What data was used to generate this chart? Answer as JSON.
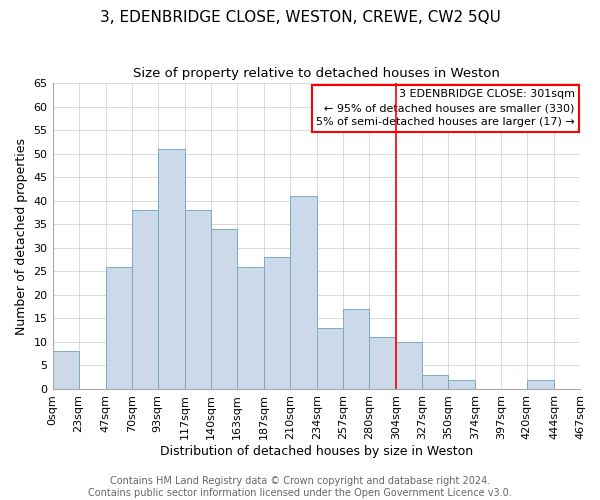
{
  "title": "3, EDENBRIDGE CLOSE, WESTON, CREWE, CW2 5QU",
  "subtitle": "Size of property relative to detached houses in Weston",
  "xlabel": "Distribution of detached houses by size in Weston",
  "ylabel": "Number of detached properties",
  "bin_edges": [
    0,
    23,
    47,
    70,
    93,
    117,
    140,
    163,
    187,
    210,
    234,
    257,
    280,
    304,
    327,
    350,
    374,
    397,
    420,
    444,
    467
  ],
  "bar_heights": [
    8,
    0,
    26,
    38,
    51,
    38,
    34,
    26,
    28,
    41,
    13,
    17,
    11,
    10,
    3,
    2,
    0,
    0,
    2,
    0
  ],
  "bar_color": "#ccd9e8",
  "bar_edge_color": "#7aaac8",
  "reference_line_x": 304,
  "reference_line_color": "red",
  "ylim": [
    0,
    65
  ],
  "yticks": [
    0,
    5,
    10,
    15,
    20,
    25,
    30,
    35,
    40,
    45,
    50,
    55,
    60,
    65
  ],
  "xtick_labels": [
    "0sqm",
    "23sqm",
    "47sqm",
    "70sqm",
    "93sqm",
    "117sqm",
    "140sqm",
    "163sqm",
    "187sqm",
    "210sqm",
    "234sqm",
    "257sqm",
    "280sqm",
    "304sqm",
    "327sqm",
    "350sqm",
    "374sqm",
    "397sqm",
    "420sqm",
    "444sqm",
    "467sqm"
  ],
  "annotation_title": "3 EDENBRIDGE CLOSE: 301sqm",
  "annotation_line1": "← 95% of detached houses are smaller (330)",
  "annotation_line2": "5% of semi-detached houses are larger (17) →",
  "annotation_box_color": "#ffffff",
  "annotation_box_edge_color": "red",
  "footer1": "Contains HM Land Registry data © Crown copyright and database right 2024.",
  "footer2": "Contains public sector information licensed under the Open Government Licence v3.0.",
  "background_color": "#ffffff",
  "plot_bg_color": "#ffffff",
  "grid_color": "#cccccc",
  "title_fontsize": 11,
  "subtitle_fontsize": 9.5,
  "axis_label_fontsize": 9,
  "tick_fontsize": 8,
  "annotation_fontsize": 8,
  "footer_fontsize": 7
}
